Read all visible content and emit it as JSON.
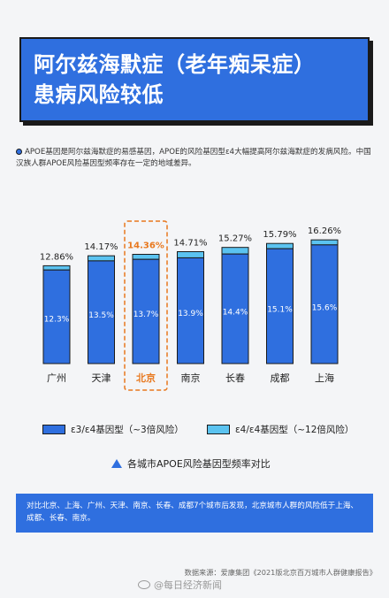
{
  "header": {
    "title_line1": "阿尔兹海默症（老年痴呆症）",
    "title_line2": "患病风险较低"
  },
  "intro": {
    "text": "APOE基因是阿尔兹海默症的易感基因，APOE的风险基因型ε4大幅提高阿尔兹海默症的发病风险。中国汉族人群APOE风险基因型频率存在一定的地域差异。"
  },
  "chart_data": {
    "type": "bar",
    "stacked": true,
    "categories": [
      "广州",
      "天津",
      "北京",
      "南京",
      "长春",
      "成都",
      "上海"
    ],
    "series": [
      {
        "name": "ε3/ε4基因型（~3倍风险）",
        "color": "#2f6fdf",
        "values": [
          12.3,
          13.5,
          13.7,
          13.9,
          14.4,
          15.1,
          15.6
        ],
        "labels": [
          "12.3%",
          "13.5%",
          "13.7%",
          "13.9%",
          "14.4%",
          "15.1%",
          "15.6%"
        ]
      },
      {
        "name": "ε4/ε4基因型（~12倍风险）",
        "color": "#5bc3f0",
        "values": [
          0.56,
          0.67,
          0.66,
          0.81,
          0.87,
          0.69,
          0.66
        ]
      }
    ],
    "totals": [
      12.86,
      14.17,
      14.36,
      14.71,
      15.27,
      15.79,
      16.26
    ],
    "total_labels": [
      "12.86%",
      "14.17%",
      "14.36%",
      "14.71%",
      "15.27%",
      "15.79%",
      "16.26%"
    ],
    "highlight_category": "北京",
    "highlight_color": "#e8781e",
    "caption": "各城市APOE风险基因型频率对比"
  },
  "note": {
    "text": "对比北京、上海、广州、天津、南京、长春、成都7个城市后发现，北京城市人群的风险低于上海、成都、长春、南京。"
  },
  "source": {
    "text": "数据来源：爱康集团《2021版北京百万城市人群健康报告》"
  },
  "watermark": {
    "text": "@每日经济新闻"
  }
}
